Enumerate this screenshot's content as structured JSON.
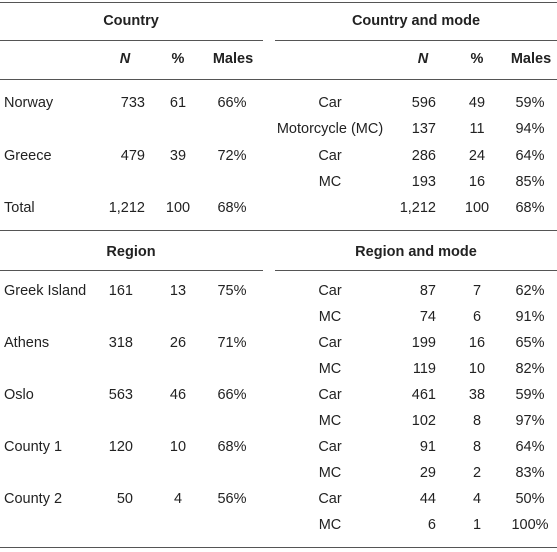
{
  "top": {
    "left_title": "Country",
    "right_title": "Country and mode",
    "headers": [
      "N",
      "%",
      "Males"
    ],
    "left_rows": [
      {
        "name": "Norway",
        "n": "733",
        "pct": "61",
        "males": "66%"
      },
      {
        "name": "Greece",
        "n": "479",
        "pct": "39",
        "males": "72%"
      },
      {
        "name": "Total",
        "n": "1,212",
        "pct": "100",
        "males": "68%"
      }
    ],
    "right_rows": [
      {
        "mode": "Car",
        "n": "596",
        "pct": "49",
        "males": "59%"
      },
      {
        "mode": "Motorcycle (MC)",
        "n": "137",
        "pct": "11",
        "males": "94%"
      },
      {
        "mode": "Car",
        "n": "286",
        "pct": "24",
        "males": "64%"
      },
      {
        "mode": "MC",
        "n": "193",
        "pct": "16",
        "males": "85%"
      },
      {
        "mode": "",
        "n": "1,212",
        "pct": "100",
        "males": "68%"
      }
    ]
  },
  "bottom": {
    "left_title": "Region",
    "right_title": "Region and mode",
    "left_rows": [
      {
        "name": "Greek Island",
        "n": "161",
        "pct": "13",
        "males": "75%"
      },
      {
        "name": "Athens",
        "n": "318",
        "pct": "26",
        "males": "71%"
      },
      {
        "name": "Oslo",
        "n": "563",
        "pct": "46",
        "males": "66%"
      },
      {
        "name": "County 1",
        "n": "120",
        "pct": "10",
        "males": "68%"
      },
      {
        "name": "County 2",
        "n": "50",
        "pct": "4",
        "males": "56%"
      }
    ],
    "right_rows": [
      {
        "mode": "Car",
        "n": "87",
        "pct": "7",
        "males": "62%"
      },
      {
        "mode": "MC",
        "n": "74",
        "pct": "6",
        "males": "91%"
      },
      {
        "mode": "Car",
        "n": "199",
        "pct": "16",
        "males": "65%"
      },
      {
        "mode": "MC",
        "n": "119",
        "pct": "10",
        "males": "82%"
      },
      {
        "mode": "Car",
        "n": "461",
        "pct": "38",
        "males": "59%"
      },
      {
        "mode": "MC",
        "n": "102",
        "pct": "8",
        "males": "97%"
      },
      {
        "mode": "Car",
        "n": "91",
        "pct": "8",
        "males": "64%"
      },
      {
        "mode": "MC",
        "n": "29",
        "pct": "2",
        "males": "83%"
      },
      {
        "mode": "Car",
        "n": "44",
        "pct": "4",
        "males": "50%"
      },
      {
        "mode": "MC",
        "n": "6",
        "pct": "1",
        "males": "100%"
      }
    ]
  }
}
